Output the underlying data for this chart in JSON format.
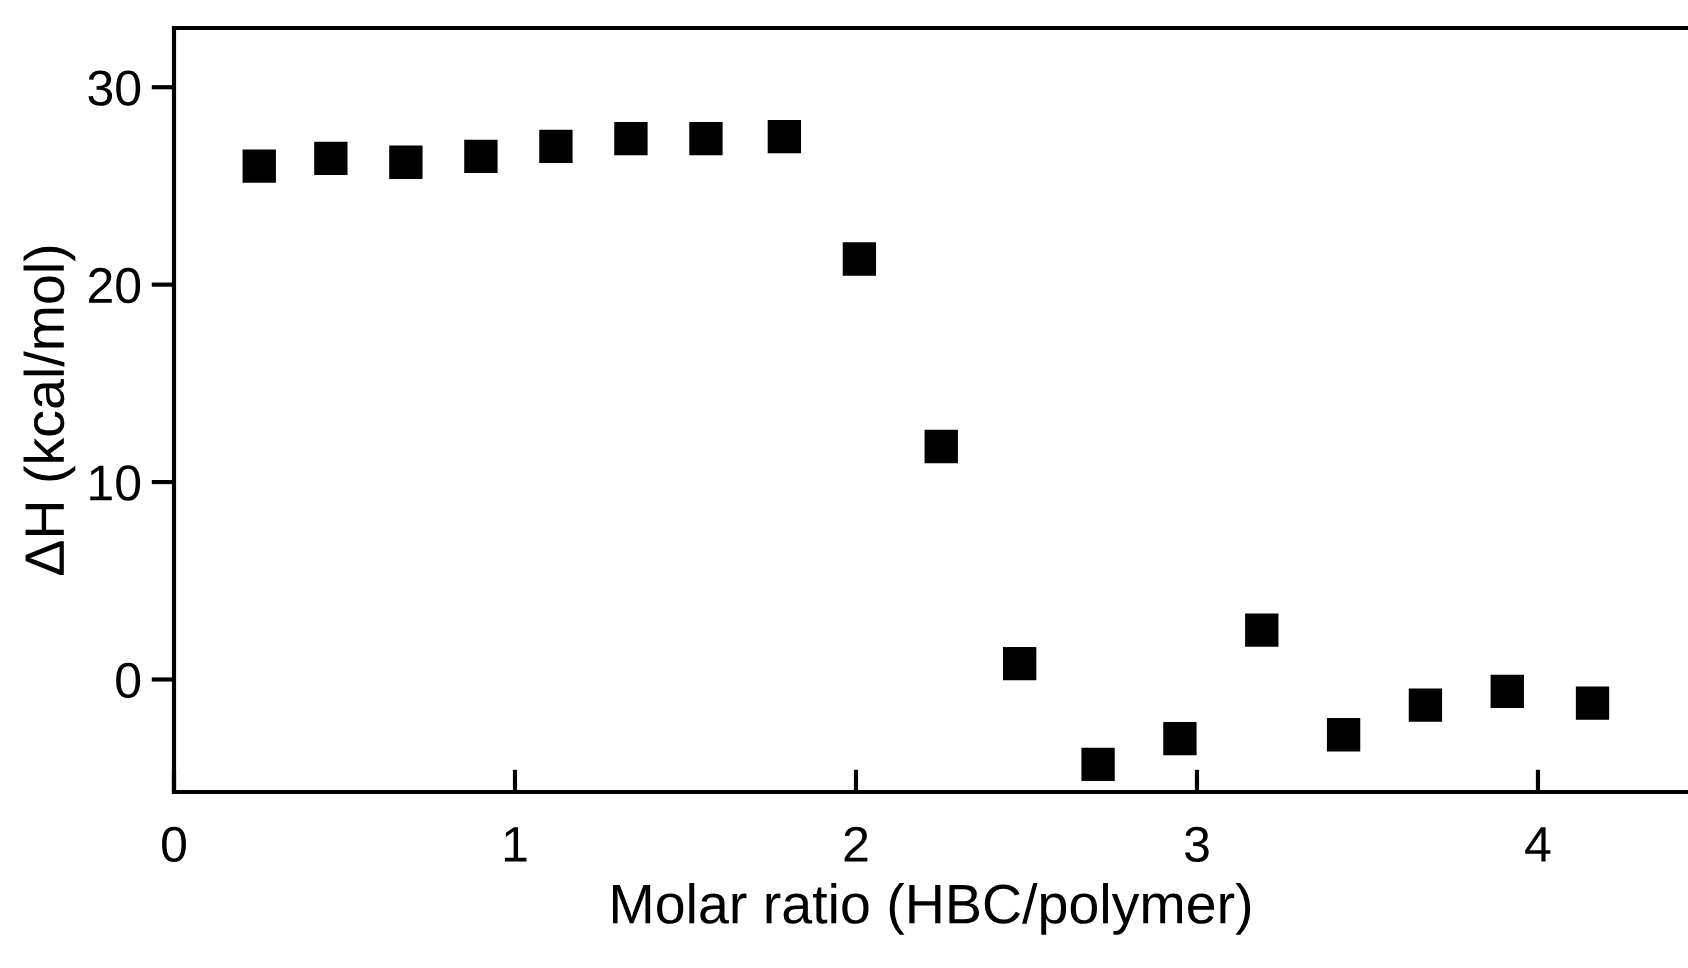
{
  "chart_data": {
    "type": "scatter",
    "xlabel": "Molar ratio (HBC/polymer)",
    "ylabel": "ΔH (kcal/mol)",
    "x": [
      0.25,
      0.46,
      0.68,
      0.9,
      1.12,
      1.34,
      1.56,
      1.79,
      2.01,
      2.25,
      2.48,
      2.71,
      2.95,
      3.19,
      3.43,
      3.67,
      3.91,
      4.16
    ],
    "values": [
      26.0,
      26.4,
      26.2,
      26.5,
      27.0,
      27.4,
      27.4,
      27.5,
      21.3,
      11.8,
      0.8,
      -4.3,
      -3.0,
      2.5,
      -2.8,
      -1.3,
      -0.6,
      -1.2
    ],
    "color": "#000000",
    "marker": "square",
    "xlim": [
      0,
      4.44
    ],
    "ylim": [
      -5.7,
      33.0
    ],
    "xticks": [
      0,
      1,
      2,
      3,
      4
    ],
    "yticks": [
      0,
      10,
      20,
      30
    ],
    "grid": false,
    "legend": false
  }
}
